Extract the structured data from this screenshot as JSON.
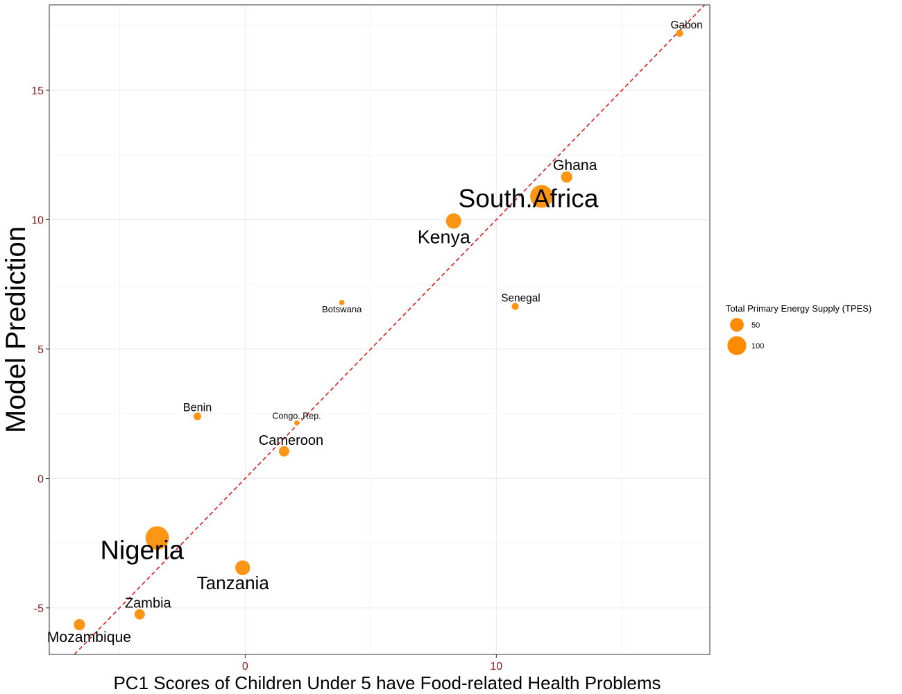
{
  "chart_data": {
    "type": "scatter",
    "xlabel": "PC1 Scores of Children Under 5 have Food-related Health Problems",
    "ylabel": "Model Prediction",
    "xlim": [
      -7.8,
      18.5
    ],
    "ylim": [
      -6.8,
      18.3
    ],
    "x_ticks": [
      0,
      10
    ],
    "x_tick_labels": [
      "0",
      "10"
    ],
    "y_ticks": [
      -5,
      0,
      5,
      10,
      15
    ],
    "y_tick_labels": [
      "-5",
      "0",
      "5",
      "10",
      "15"
    ],
    "grid": true,
    "reference_line": {
      "type": "identity",
      "style": "dashed",
      "color": "#e31a1c"
    },
    "point_color": "#ff8c00",
    "size_variable": "Total Primary Energy Supply (TPES)",
    "legend": {
      "position": "right",
      "title": "Total Primary Energy Supply (TPES)",
      "entries": [
        {
          "label": "50",
          "size": 50
        },
        {
          "label": "100",
          "size": 100
        }
      ]
    },
    "points": [
      {
        "label": "Gabon",
        "x": 17.3,
        "y": 17.2,
        "size": 10
      },
      {
        "label": "Ghana",
        "x": 12.8,
        "y": 11.65,
        "size": 30
      },
      {
        "label": "South.Africa",
        "x": 11.8,
        "y": 10.9,
        "size": 140
      },
      {
        "label": "Kenya",
        "x": 8.3,
        "y": 9.95,
        "size": 60
      },
      {
        "label": "Senegal",
        "x": 10.75,
        "y": 6.65,
        "size": 10
      },
      {
        "label": "Botswana",
        "x": 3.85,
        "y": 6.8,
        "size": 5
      },
      {
        "label": "Benin",
        "x": -1.9,
        "y": 2.4,
        "size": 12
      },
      {
        "label": "Congo..Rep.",
        "x": 2.05,
        "y": 2.15,
        "size": 4
      },
      {
        "label": "Cameroon",
        "x": 1.55,
        "y": 1.05,
        "size": 25
      },
      {
        "label": "Nigeria",
        "x": -3.5,
        "y": -2.3,
        "size": 150
      },
      {
        "label": "Tanzania",
        "x": -0.1,
        "y": -3.45,
        "size": 55
      },
      {
        "label": "Zambia",
        "x": -4.2,
        "y": -5.25,
        "size": 25
      },
      {
        "label": "Mozambique",
        "x": -6.6,
        "y": -5.65,
        "size": 30
      }
    ]
  }
}
